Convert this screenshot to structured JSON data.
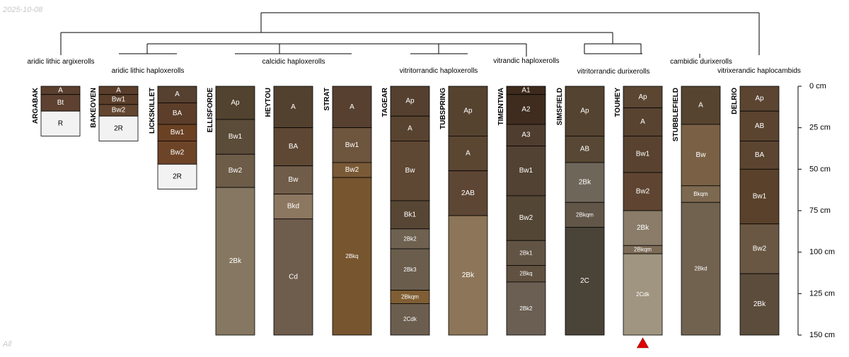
{
  "date_stamp": "2025-10-08",
  "corner_note": "All",
  "depth_axis": {
    "unit": "cm",
    "max": 150,
    "ticks": [
      {
        "value": 0,
        "label": "0 cm"
      },
      {
        "value": 25,
        "label": "25 cm"
      },
      {
        "value": 50,
        "label": "50 cm"
      },
      {
        "value": 75,
        "label": "75 cm"
      },
      {
        "value": 100,
        "label": "100 cm"
      },
      {
        "value": 125,
        "label": "125 cm"
      },
      {
        "value": 150,
        "label": "150 cm"
      }
    ]
  },
  "taxa_labels": [
    "aridic lithic argixerolls",
    "aridic lithic haploxerolls",
    "calcidic haploxerolls",
    "vitritorrandic haploxerolls",
    "vitrandic haploxerolls",
    "vitritorrandic durixerolls",
    "cambidic durixerolls",
    "vitrixerandic haplocambids"
  ],
  "marker": {
    "profile": "TOUHEY",
    "symbol": "triangle",
    "color": "#e00000"
  },
  "profiles": [
    {
      "name": "ARGABAK",
      "horizons": [
        {
          "name": "A",
          "top": 0,
          "bottom": 5,
          "color": "#5a3f2e"
        },
        {
          "name": "Bt",
          "top": 5,
          "bottom": 15,
          "color": "#5e4130"
        },
        {
          "name": "R",
          "top": 15,
          "bottom": 30,
          "color": "#f2f2f2"
        }
      ]
    },
    {
      "name": "BAKEOVEN",
      "horizons": [
        {
          "name": "A",
          "top": 0,
          "bottom": 5,
          "color": "#5a3e2b"
        },
        {
          "name": "Bw1",
          "top": 5,
          "bottom": 11,
          "color": "#5b3e2a"
        },
        {
          "name": "Bw2",
          "top": 11,
          "bottom": 18,
          "color": "#634630"
        },
        {
          "name": "2R",
          "top": 18,
          "bottom": 33,
          "color": "#f2f2f2"
        }
      ]
    },
    {
      "name": "LICKSKILLET",
      "horizons": [
        {
          "name": "A",
          "top": 0,
          "bottom": 10,
          "color": "#56402f"
        },
        {
          "name": "BA",
          "top": 10,
          "bottom": 23,
          "color": "#5c3e2a"
        },
        {
          "name": "Bw1",
          "top": 23,
          "bottom": 33,
          "color": "#6b4124"
        },
        {
          "name": "Bw2",
          "top": 33,
          "bottom": 47,
          "color": "#6d4428"
        },
        {
          "name": "2R",
          "top": 47,
          "bottom": 62,
          "color": "#f2f2f2"
        }
      ]
    },
    {
      "name": "ELLISFORDE",
      "horizons": [
        {
          "name": "Ap",
          "top": 0,
          "bottom": 20,
          "color": "#51432f"
        },
        {
          "name": "Bw1",
          "top": 20,
          "bottom": 41,
          "color": "#5b4b39"
        },
        {
          "name": "Bw2",
          "top": 41,
          "bottom": 61,
          "color": "#6d5c48"
        },
        {
          "name": "2Bk",
          "top": 61,
          "bottom": 150,
          "color": "#857761"
        }
      ]
    },
    {
      "name": "HEYTOU",
      "horizons": [
        {
          "name": "A",
          "top": 0,
          "bottom": 25,
          "color": "#53412f"
        },
        {
          "name": "BA",
          "top": 25,
          "bottom": 48,
          "color": "#5e4834"
        },
        {
          "name": "Bw",
          "top": 48,
          "bottom": 65,
          "color": "#6f5c49"
        },
        {
          "name": "Bkd",
          "top": 65,
          "bottom": 80,
          "color": "#8c7760"
        },
        {
          "name": "Cd",
          "top": 80,
          "bottom": 150,
          "color": "#6e5c4c"
        }
      ]
    },
    {
      "name": "STRAT",
      "horizons": [
        {
          "name": "A",
          "top": 0,
          "bottom": 25,
          "color": "#574030"
        },
        {
          "name": "Bw1",
          "top": 25,
          "bottom": 46,
          "color": "#6d553e"
        },
        {
          "name": "Bw2",
          "top": 46,
          "bottom": 55,
          "color": "#7a5a36"
        },
        {
          "name": "2Bkq",
          "top": 55,
          "bottom": 150,
          "color": "#77552f"
        }
      ]
    },
    {
      "name": "TAGEAR",
      "horizons": [
        {
          "name": "Ap",
          "top": 0,
          "bottom": 18,
          "color": "#55402f"
        },
        {
          "name": "A",
          "top": 18,
          "bottom": 33,
          "color": "#584330"
        },
        {
          "name": "Bw",
          "top": 33,
          "bottom": 69,
          "color": "#5e4733"
        },
        {
          "name": "Bk1",
          "top": 69,
          "bottom": 86,
          "color": "#574634"
        },
        {
          "name": "2Bk2",
          "top": 86,
          "bottom": 98,
          "color": "#6e6150"
        },
        {
          "name": "2Bk3",
          "top": 98,
          "bottom": 123,
          "color": "#6a5d4c"
        },
        {
          "name": "2Bkqm",
          "top": 123,
          "bottom": 131,
          "color": "#805e34"
        },
        {
          "name": "2Cdk",
          "top": 131,
          "bottom": 150,
          "color": "#6c5e4f"
        }
      ]
    },
    {
      "name": "TUBSPRING",
      "horizons": [
        {
          "name": "Ap",
          "top": 0,
          "bottom": 30,
          "color": "#56432f"
        },
        {
          "name": "A",
          "top": 30,
          "bottom": 51,
          "color": "#5b4632"
        },
        {
          "name": "2AB",
          "top": 51,
          "bottom": 78,
          "color": "#5e4634"
        },
        {
          "name": "2Bk",
          "top": 78,
          "bottom": 150,
          "color": "#8c7558"
        }
      ]
    },
    {
      "name": "TIMENTWA",
      "horizons": [
        {
          "name": "A1",
          "top": 0,
          "bottom": 5,
          "color": "#3e2a1c"
        },
        {
          "name": "A2",
          "top": 5,
          "bottom": 23,
          "color": "#3f2c1f"
        },
        {
          "name": "A3",
          "top": 23,
          "bottom": 36,
          "color": "#4f3e30"
        },
        {
          "name": "Bw1",
          "top": 36,
          "bottom": 66,
          "color": "#524233"
        },
        {
          "name": "Bw2",
          "top": 66,
          "bottom": 93,
          "color": "#544635"
        },
        {
          "name": "2Bk1",
          "top": 93,
          "bottom": 108,
          "color": "#625444"
        },
        {
          "name": "2Bkq",
          "top": 108,
          "bottom": 118,
          "color": "#605140"
        },
        {
          "name": "2Bk2",
          "top": 118,
          "bottom": 150,
          "color": "#6b5f53"
        }
      ]
    },
    {
      "name": "SIMSFIELD",
      "horizons": [
        {
          "name": "Ap",
          "top": 0,
          "bottom": 30,
          "color": "#544330"
        },
        {
          "name": "AB",
          "top": 30,
          "bottom": 46,
          "color": "#574734"
        },
        {
          "name": "2Bk",
          "top": 46,
          "bottom": 70,
          "color": "#6f665a"
        },
        {
          "name": "2Bkqm",
          "top": 70,
          "bottom": 85,
          "color": "#625648"
        },
        {
          "name": "2C",
          "top": 85,
          "bottom": 150,
          "color": "#4a4338"
        }
      ]
    },
    {
      "name": "TOUHEY",
      "horizons": [
        {
          "name": "Ap",
          "top": 0,
          "bottom": 13,
          "color": "#5b4632"
        },
        {
          "name": "A",
          "top": 13,
          "bottom": 30,
          "color": "#574330"
        },
        {
          "name": "Bw1",
          "top": 30,
          "bottom": 52,
          "color": "#594330"
        },
        {
          "name": "Bw2",
          "top": 52,
          "bottom": 75,
          "color": "#5f4531"
        },
        {
          "name": "2Bk",
          "top": 75,
          "bottom": 96,
          "color": "#8a7c68"
        },
        {
          "name": "2Bkqm",
          "top": 96,
          "bottom": 101,
          "color": "#7c6b57"
        },
        {
          "name": "2Cdk",
          "top": 101,
          "bottom": 150,
          "color": "#a09580"
        }
      ]
    },
    {
      "name": "STUBBLEFIELD",
      "horizons": [
        {
          "name": "A",
          "top": 0,
          "bottom": 23,
          "color": "#574430"
        },
        {
          "name": "Bw",
          "top": 23,
          "bottom": 60,
          "color": "#7a6146"
        },
        {
          "name": "Bkqm",
          "top": 60,
          "bottom": 70,
          "color": "#7d6950"
        },
        {
          "name": "2Bkd",
          "top": 70,
          "bottom": 150,
          "color": "#716250"
        }
      ]
    },
    {
      "name": "DELRIO",
      "horizons": [
        {
          "name": "Ap",
          "top": 0,
          "bottom": 15,
          "color": "#5b4531"
        },
        {
          "name": "AB",
          "top": 15,
          "bottom": 33,
          "color": "#5a4430"
        },
        {
          "name": "BA",
          "top": 33,
          "bottom": 50,
          "color": "#5b4430"
        },
        {
          "name": "Bw1",
          "top": 50,
          "bottom": 83,
          "color": "#5a412b"
        },
        {
          "name": "Bw2",
          "top": 83,
          "bottom": 113,
          "color": "#6a5743"
        },
        {
          "name": "2Bk",
          "top": 113,
          "bottom": 150,
          "color": "#5c4c3b"
        }
      ]
    }
  ]
}
